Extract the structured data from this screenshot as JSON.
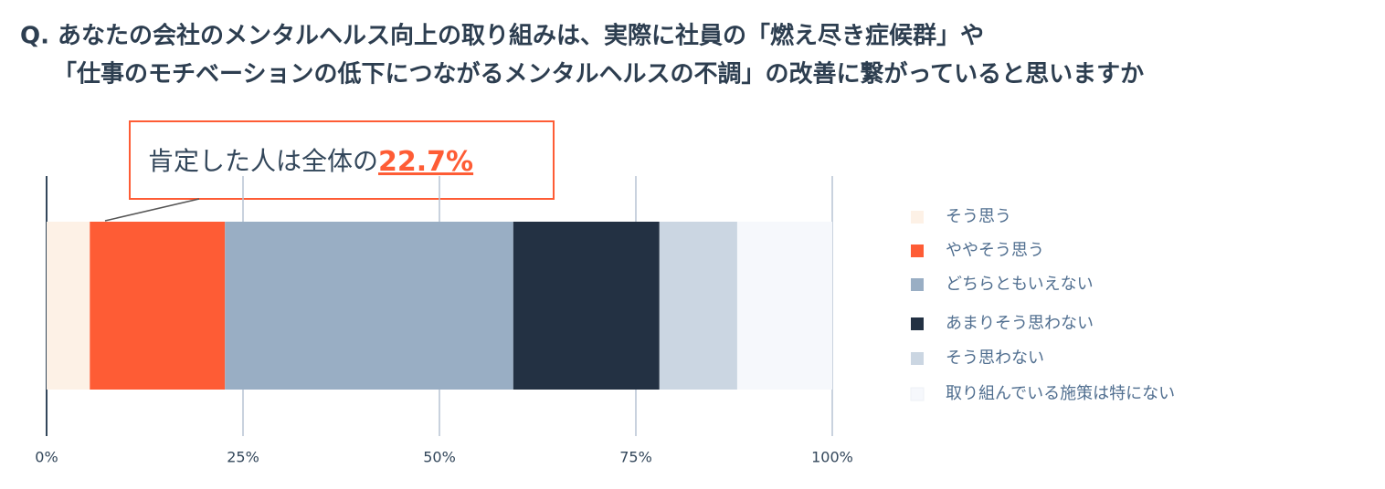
{
  "chart_data": {
    "type": "stacked-bar-horizontal",
    "title": [
      "Q. あなたの会社のメンタルヘルス向上の取り組みは、実際に社員の「燃え尽き症候群」や",
      "「仕事のモチベーションの低下につながるメンタルヘルスの不調」の改善に繋がっていると思いますか"
    ],
    "annotation": {
      "text": "肯定した人は全体の",
      "highlight": "22.7%"
    },
    "series": [
      {
        "name": "そう思う",
        "color": "#fdf1e6",
        "values": [
          5.5
        ]
      },
      {
        "name": "ややそう思う",
        "color": "#fe5c35",
        "values": [
          17.2
        ]
      },
      {
        "name": "どちらともいえない",
        "color": "#99aec4",
        "values": [
          36.7
        ]
      },
      {
        "name": "あまりそう思わない",
        "color": "#233143",
        "values": [
          18.6
        ]
      },
      {
        "name": "そう思わない",
        "color": "#cbd6e2",
        "values": [
          9.9
        ]
      },
      {
        "name": "取り組んでいる施策は特にない",
        "color": "#f6f8fc",
        "values": [
          12.1
        ]
      }
    ],
    "xlim": [
      0,
      100
    ],
    "xticks": [
      {
        "value": 0,
        "label": "0%"
      },
      {
        "value": 25,
        "label": "25%"
      },
      {
        "value": 50,
        "label": "50%"
      },
      {
        "value": 75,
        "label": "75%"
      },
      {
        "value": 100,
        "label": "100%"
      }
    ],
    "grid": true,
    "legend": "right"
  }
}
